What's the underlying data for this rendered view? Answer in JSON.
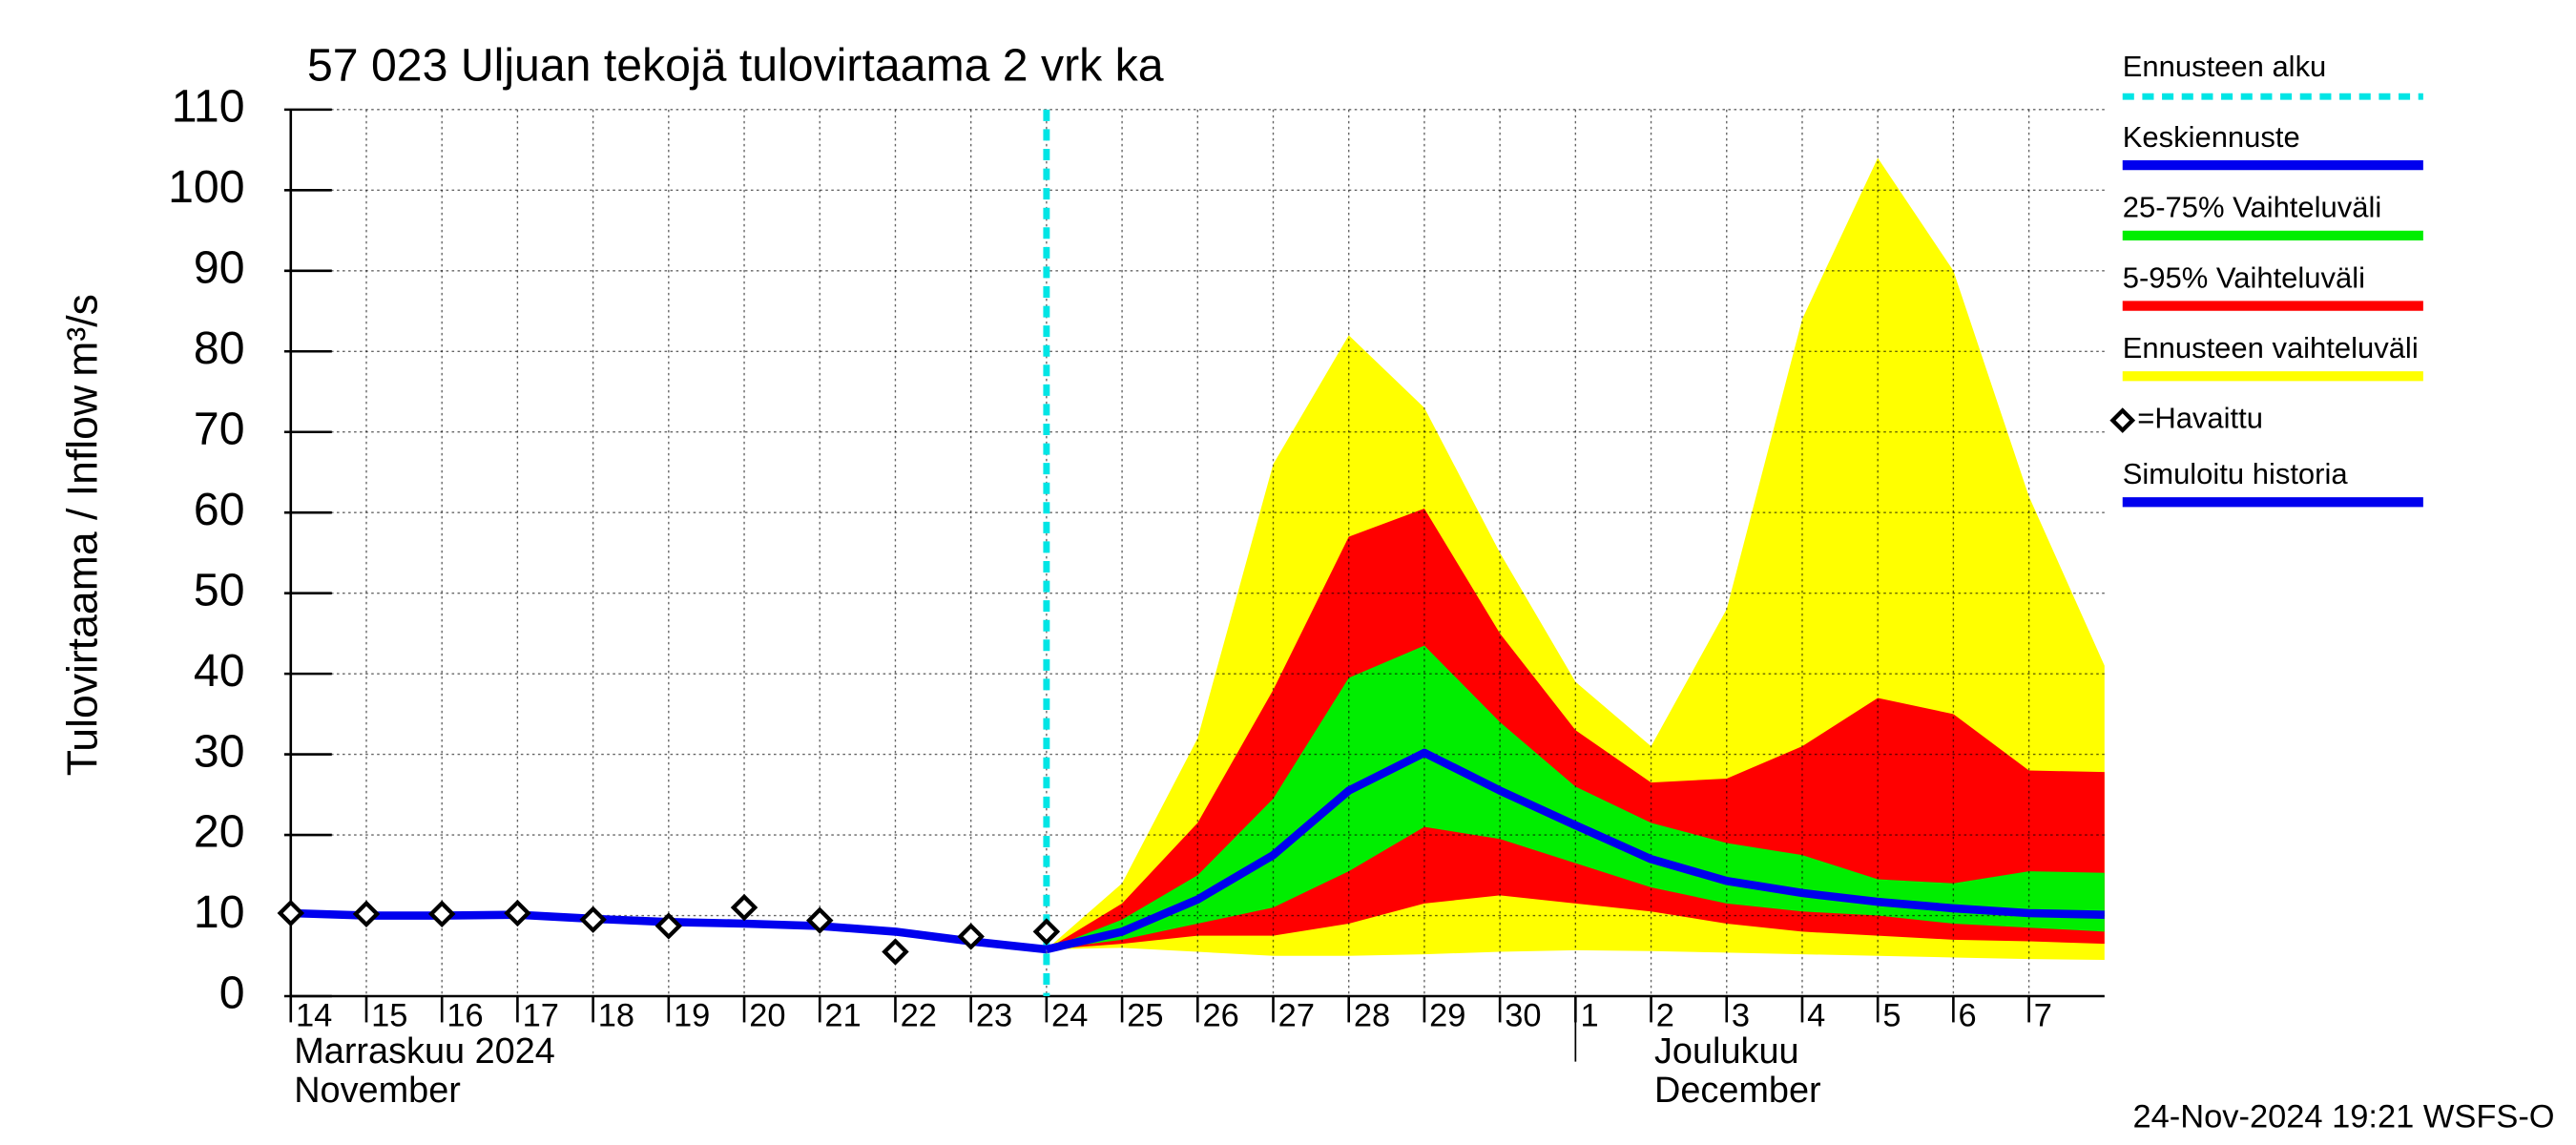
{
  "chart_data": {
    "type": "line",
    "title": "57 023 Uljuan tekojä tulovirtaama 2 vrk ka",
    "y_label": "Tulovirtaama / Inflow",
    "y_unit": "m³/s",
    "footer": "24-Nov-2024 19:21 WSFS-O",
    "month_labels": [
      {
        "x": "2024-11-14",
        "lines": [
          "Marraskuu 2024",
          "November"
        ]
      },
      {
        "x": "2024-12-01",
        "lines": [
          "Joulukuu",
          "December"
        ]
      }
    ],
    "x": [
      "2024-11-14",
      "2024-11-15",
      "2024-11-16",
      "2024-11-17",
      "2024-11-18",
      "2024-11-19",
      "2024-11-20",
      "2024-11-21",
      "2024-11-22",
      "2024-11-23",
      "2024-11-24",
      "2024-11-25",
      "2024-11-26",
      "2024-11-27",
      "2024-11-28",
      "2024-11-29",
      "2024-11-30",
      "2024-12-01",
      "2024-12-02",
      "2024-12-03",
      "2024-12-04",
      "2024-12-05",
      "2024-12-06",
      "2024-12-07",
      "2024-12-08"
    ],
    "xlim": [
      "2024-11-14",
      "2024-12-08"
    ],
    "xticks": [
      {
        "value": "2024-11-14",
        "label": "14"
      },
      {
        "value": "2024-11-15",
        "label": "15"
      },
      {
        "value": "2024-11-16",
        "label": "16"
      },
      {
        "value": "2024-11-17",
        "label": "17"
      },
      {
        "value": "2024-11-18",
        "label": "18"
      },
      {
        "value": "2024-11-19",
        "label": "19"
      },
      {
        "value": "2024-11-20",
        "label": "20"
      },
      {
        "value": "2024-11-21",
        "label": "21"
      },
      {
        "value": "2024-11-22",
        "label": "22"
      },
      {
        "value": "2024-11-23",
        "label": "23"
      },
      {
        "value": "2024-11-24",
        "label": "24"
      },
      {
        "value": "2024-11-25",
        "label": "25"
      },
      {
        "value": "2024-11-26",
        "label": "26"
      },
      {
        "value": "2024-11-27",
        "label": "27"
      },
      {
        "value": "2024-11-28",
        "label": "28"
      },
      {
        "value": "2024-11-29",
        "label": "29"
      },
      {
        "value": "2024-11-30",
        "label": "30"
      },
      {
        "value": "2024-12-01",
        "label": "1"
      },
      {
        "value": "2024-12-02",
        "label": "2"
      },
      {
        "value": "2024-12-03",
        "label": "3"
      },
      {
        "value": "2024-12-04",
        "label": "4"
      },
      {
        "value": "2024-12-05",
        "label": "5"
      },
      {
        "value": "2024-12-06",
        "label": "6"
      },
      {
        "value": "2024-12-07",
        "label": "7"
      }
    ],
    "ylim": [
      0,
      110
    ],
    "yticks": [
      0,
      10,
      20,
      30,
      40,
      50,
      60,
      70,
      80,
      90,
      100,
      110
    ],
    "grid": true,
    "forecast_start": {
      "name": "Ennusteen alku",
      "x": "2024-11-24",
      "color": "#00e5e5"
    },
    "series": [
      {
        "name": "Keskiennuste",
        "kind": "line",
        "color": "#0000ee",
        "values": [
          null,
          null,
          null,
          null,
          null,
          null,
          null,
          null,
          null,
          null,
          5.8,
          8,
          12,
          17.5,
          25.5,
          30.2,
          25.5,
          21.2,
          17,
          14.3,
          12.8,
          11.7,
          10.9,
          10.3,
          10.1
        ]
      },
      {
        "name": "25-75% Vaihteluväli",
        "kind": "band",
        "color": "#00ee00",
        "upper": [
          null,
          null,
          null,
          null,
          null,
          null,
          null,
          null,
          null,
          null,
          5.8,
          9.5,
          15,
          24.5,
          39.5,
          43.5,
          34,
          26,
          21.5,
          19,
          17.5,
          14.5,
          14,
          15.5,
          15.3
        ],
        "lower": [
          null,
          null,
          null,
          null,
          null,
          null,
          null,
          null,
          null,
          null,
          5.8,
          7,
          9,
          11,
          15.5,
          21,
          19.5,
          16.5,
          13.5,
          11.5,
          10.5,
          10,
          9,
          8.5,
          8
        ]
      },
      {
        "name": "5-95% Vaihteluväli",
        "kind": "band",
        "color": "#ff0000",
        "upper": [
          null,
          null,
          null,
          null,
          null,
          null,
          null,
          null,
          null,
          null,
          5.8,
          11.5,
          21.5,
          38,
          57,
          60.5,
          45,
          33,
          26.5,
          27,
          31,
          37,
          35,
          28,
          27.8
        ],
        "lower": [
          null,
          null,
          null,
          null,
          null,
          null,
          null,
          null,
          null,
          null,
          5.8,
          6.5,
          7.5,
          7.5,
          9,
          11.5,
          12.5,
          11.5,
          10.5,
          9,
          8,
          7.5,
          7,
          6.8,
          6.5
        ]
      },
      {
        "name": "Ennusteen vaihteluväli",
        "kind": "band",
        "color": "#ffff00",
        "upper": [
          null,
          null,
          null,
          null,
          null,
          null,
          null,
          null,
          null,
          null,
          5.8,
          14,
          32,
          66,
          82,
          73,
          55,
          39,
          31,
          48,
          84,
          104,
          90,
          62,
          41
        ],
        "lower": [
          null,
          null,
          null,
          null,
          null,
          null,
          null,
          null,
          null,
          null,
          5.8,
          6,
          5.5,
          5,
          5,
          5.2,
          5.5,
          5.7,
          5.6,
          5.4,
          5.2,
          5,
          4.8,
          4.6,
          4.5
        ]
      },
      {
        "name": "=Havaittu",
        "kind": "marker",
        "color": "#000000",
        "values": [
          10.3,
          10.2,
          10.2,
          10.3,
          9.5,
          8.7,
          11,
          9.4,
          5.5,
          7.4,
          8,
          null,
          null,
          null,
          null,
          null,
          null,
          null,
          null,
          null,
          null,
          null,
          null,
          null,
          null
        ]
      },
      {
        "name": "Simuloitu historia",
        "kind": "line",
        "color": "#0000ee",
        "values": [
          10.3,
          10,
          10,
          10.1,
          9.6,
          9.2,
          9,
          8.7,
          8,
          6.8,
          5.8,
          null,
          null,
          null,
          null,
          null,
          null,
          null,
          null,
          null,
          null,
          null,
          null,
          null,
          null
        ]
      }
    ]
  }
}
